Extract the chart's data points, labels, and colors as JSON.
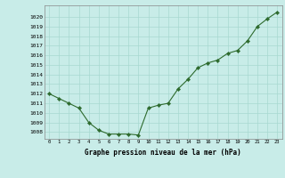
{
  "x": [
    0,
    1,
    2,
    3,
    4,
    5,
    6,
    7,
    8,
    9,
    10,
    11,
    12,
    13,
    14,
    15,
    16,
    17,
    18,
    19,
    20,
    21,
    22,
    23
  ],
  "y": [
    1012.0,
    1011.5,
    1011.0,
    1010.5,
    1009.0,
    1008.2,
    1007.8,
    1007.8,
    1007.8,
    1007.7,
    1010.5,
    1010.8,
    1011.0,
    1012.5,
    1013.5,
    1014.7,
    1015.2,
    1015.5,
    1016.2,
    1016.5,
    1017.5,
    1019.0,
    1019.8,
    1020.5
  ],
  "line_color": "#2d6a2d",
  "marker_color": "#2d6a2d",
  "bg_color": "#c8ece8",
  "grid_color": "#a8d8d0",
  "title": "Graphe pression niveau de la mer (hPa)",
  "ylabel_values": [
    1008,
    1009,
    1010,
    1011,
    1012,
    1013,
    1014,
    1015,
    1016,
    1017,
    1018,
    1019,
    1020
  ],
  "ylim": [
    1007.3,
    1021.2
  ],
  "xlim": [
    -0.5,
    23.5
  ],
  "xlabel_values": [
    0,
    1,
    2,
    3,
    4,
    5,
    6,
    7,
    8,
    9,
    10,
    11,
    12,
    13,
    14,
    15,
    16,
    17,
    18,
    19,
    20,
    21,
    22,
    23
  ]
}
